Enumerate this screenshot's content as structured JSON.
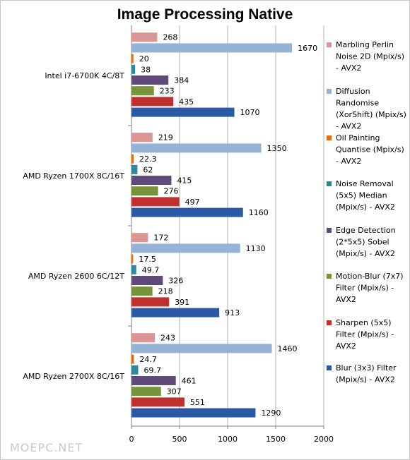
{
  "chart_data": {
    "type": "bar",
    "orientation": "horizontal",
    "title": "Image Processing Native",
    "categories": [
      "Intel i7-6700K 4C/8T",
      "AMD Ryzen 1700X 8C/16T",
      "AMD Ryzen 2600 6C/12T",
      "AMD Ryzen 2700X 8C/16T"
    ],
    "series": [
      {
        "name": "Marbling Perlin Noise 2D (Mpix/s) - AVX2",
        "legend_lines": [
          "Marbling Perlin",
          "Noise 2D (Mpix/s)",
          "- AVX2"
        ],
        "color": "#da9694",
        "values": [
          268,
          219,
          172,
          243
        ],
        "labels": [
          "268",
          "219",
          "172",
          "243"
        ]
      },
      {
        "name": "Diffusion Randomise (XorShift) (Mpix/s) - AVX2",
        "legend_lines": [
          "Diffusion",
          "Randomise",
          "(XorShift) (Mpix/s)",
          "- AVX2"
        ],
        "color": "#95b3d7",
        "values": [
          1670,
          1350,
          1130,
          1460
        ],
        "labels": [
          "1670",
          "1350",
          "1130",
          "1460"
        ]
      },
      {
        "name": "Oil Painting Quantise (Mpix/s) - AVX2",
        "legend_lines": [
          "Oil Painting",
          "Quantise (Mpix/s)",
          "- AVX2"
        ],
        "color": "#e46c0a",
        "values": [
          20,
          22.3,
          17.5,
          24.7
        ],
        "labels": [
          "20",
          "22.3",
          "17.5",
          "24.7"
        ]
      },
      {
        "name": "Noise Removal (5x5) Median (Mpix/s) - AVX2",
        "legend_lines": [
          "Noise Removal",
          "(5x5) Median",
          "(Mpix/s) - AVX2"
        ],
        "color": "#31859c",
        "values": [
          38,
          62,
          49.7,
          69.7
        ],
        "labels": [
          "38",
          "62",
          "49.7",
          "69.7"
        ]
      },
      {
        "name": "Edge Detection (2*5x5) Sobel (Mpix/s) - AVX2",
        "legend_lines": [
          "Edge Detection",
          "(2*5x5) Sobel",
          "(Mpix/s) - AVX2"
        ],
        "color": "#604a7b",
        "values": [
          384,
          415,
          326,
          461
        ],
        "labels": [
          "384",
          "415",
          "326",
          "461"
        ]
      },
      {
        "name": "Motion-Blur (7x7) Filter (Mpix/s) - AVX2",
        "legend_lines": [
          "Motion-Blur (7x7)",
          "Filter (Mpix/s) -",
          "AVX2"
        ],
        "color": "#77933c",
        "values": [
          233,
          276,
          218,
          307
        ],
        "labels": [
          "233",
          "276",
          "218",
          "307"
        ]
      },
      {
        "name": "Sharpen (5x5) Filter (Mpix/s) - AVX2",
        "legend_lines": [
          "Sharpen (5x5)",
          "Filter (Mpix/s) -",
          "AVX2"
        ],
        "color": "#c0302e",
        "values": [
          435,
          497,
          391,
          551
        ],
        "labels": [
          "435",
          "497",
          "391",
          "551"
        ]
      },
      {
        "name": "Blur (3x3) Filter (Mpix/s) - AVX2",
        "legend_lines": [
          "Blur (3x3) Filter",
          "(Mpix/s) - AVX2"
        ],
        "color": "#2b5aa5",
        "values": [
          1070,
          1160,
          913,
          1290
        ],
        "labels": [
          "1070",
          "1160",
          "913",
          "1290"
        ]
      }
    ],
    "xlim": [
      0,
      2000
    ],
    "x_ticks": [
      0,
      500,
      1000,
      1500,
      2000
    ],
    "x_tick_labels": [
      "0",
      "500",
      "1000",
      "1500",
      "2000"
    ],
    "grid": true,
    "legend": "right"
  },
  "watermark": "MOEPC.NET"
}
